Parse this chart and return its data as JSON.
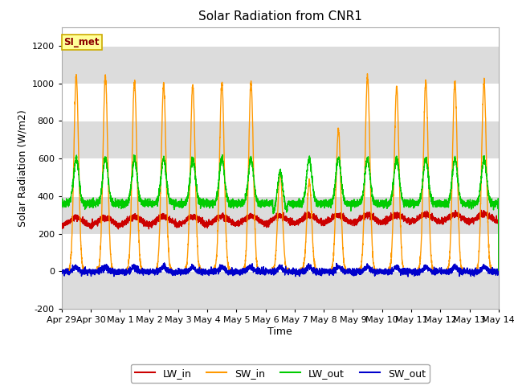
{
  "title": "Solar Radiation from CNR1",
  "xlabel": "Time",
  "ylabel": "Solar Radiation (W/m2)",
  "ylim": [
    -200,
    1300
  ],
  "yticks": [
    -200,
    0,
    200,
    400,
    600,
    800,
    1000,
    1200
  ],
  "n_days": 15,
  "points_per_day": 288,
  "colors": {
    "LW_in": "#cc0000",
    "SW_in": "#ff9900",
    "LW_out": "#00cc00",
    "SW_out": "#0000cc"
  },
  "line_width": 1.0,
  "bg_color": "#ffffff",
  "plot_bg_color": "#ffffff",
  "band_color": "#dcdcdc",
  "annotation_text": "SI_met",
  "annotation_color": "#8B0000",
  "annotation_bg": "#ffff99",
  "annotation_border": "#ccaa00",
  "x_tick_labels": [
    "Apr 29",
    "Apr 30",
    "May 1",
    "May 2",
    "May 3",
    "May 4",
    "May 5",
    "May 6",
    "May 7",
    "May 8",
    "May 9",
    "May 10",
    "May 11",
    "May 12",
    "May 13",
    "May 14"
  ],
  "fig_width": 6.4,
  "fig_height": 4.8,
  "dpi": 100
}
